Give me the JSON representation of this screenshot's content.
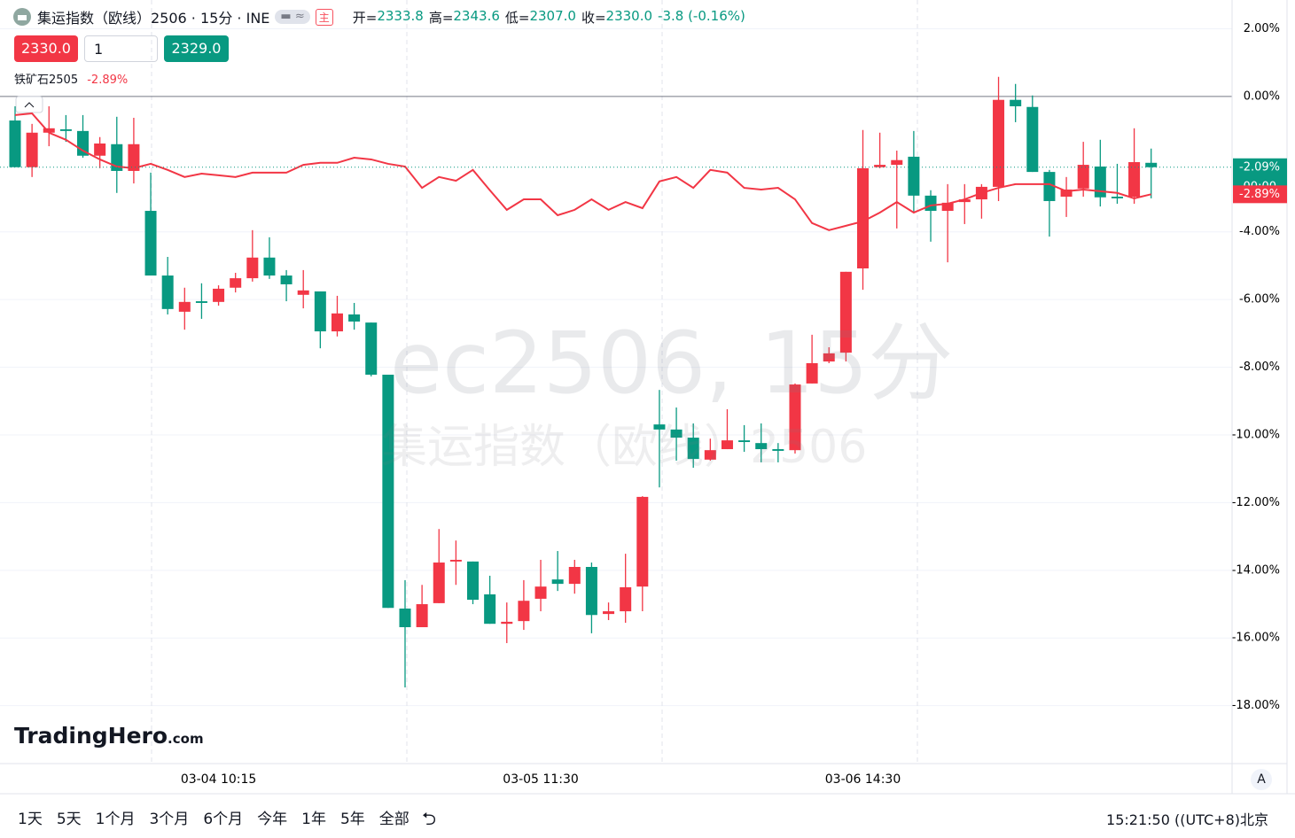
{
  "header": {
    "symbol": "集运指数（欧线）2506 · 15分 · INE",
    "badge": "主",
    "ohlc": [
      {
        "label": "开=",
        "value": "2333.8"
      },
      {
        "label": "高=",
        "value": "2343.6"
      },
      {
        "label": "低=",
        "value": "2307.0"
      },
      {
        "label": "收=",
        "value": "2330.0"
      }
    ],
    "change": "-3.8 (-0.16%)",
    "sell": "2330.0",
    "qty": "1",
    "buy": "2329.0"
  },
  "watermark": {
    "line1": "ec2506, 15分",
    "line2": "集运指数（欧线）2506"
  },
  "logo": {
    "name": "TradingHero",
    "suffix": ".com"
  },
  "footer": {
    "periods": [
      "1天",
      "5天",
      "1个月",
      "3个月",
      "6个月",
      "今年",
      "1年",
      "5年",
      "全部"
    ],
    "clock": "15:21:50 ((UTC+8)北京",
    "auto": "A"
  },
  "chart_data": {
    "type": "candlestick",
    "categories": [
      null,
      null,
      null,
      null,
      null,
      null,
      null,
      null,
      null,
      null,
      null,
      null,
      "03-04 10:15",
      null,
      null,
      null,
      null,
      null,
      null,
      null,
      null,
      null,
      null,
      null,
      null,
      null,
      null,
      null,
      null,
      null,
      null,
      "03-05 11:30",
      null,
      null,
      null,
      null,
      null,
      null,
      null,
      null,
      null,
      null,
      null,
      null,
      null,
      null,
      null,
      null,
      null,
      null,
      "03-06 14:30",
      null,
      null,
      null,
      null,
      null,
      null,
      null,
      null,
      null,
      null,
      null,
      null,
      null,
      null,
      null,
      null,
      null
    ],
    "open": [
      -0.71,
      -2.09,
      -1.07,
      -0.97,
      -1.02,
      -1.75,
      -1.41,
      -2.2,
      -3.38,
      -5.29,
      -6.36,
      -6.05,
      -6.07,
      -5.65,
      -5.37,
      -4.76,
      -5.29,
      -5.86,
      -5.76,
      -6.94,
      -6.44,
      -6.68,
      -8.22,
      -15.13,
      -15.68,
      -14.97,
      -13.74,
      -13.74,
      -14.71,
      -15.58,
      -15.5,
      -14.84,
      -14.27,
      -14.4,
      -13.9,
      -15.29,
      -15.21,
      -14.48,
      -9.69,
      -9.84,
      -10.08,
      -10.73,
      -10.42,
      -10.16,
      -10.24,
      -10.42,
      -10.45,
      -8.48,
      -7.83,
      -7.57,
      -5.08,
      -2.09,
      -2.02,
      -1.78,
      -2.93,
      -3.38,
      -3.12,
      -3.04,
      -2.67,
      -0.1,
      -0.31,
      -2.23,
      -2.96,
      -2.72,
      -2.07,
      -2.96,
      -2.96,
      -1.96
    ],
    "high": [
      -0.29,
      -0.81,
      -0.29,
      -0.55,
      -0.55,
      -1.2,
      -0.6,
      -0.63,
      -2.25,
      -4.74,
      -5.65,
      -5.52,
      -5.58,
      -5.21,
      -3.95,
      -4.16,
      -5.13,
      -5.13,
      -5.76,
      -5.89,
      -6.1,
      -6.68,
      -8.22,
      -14.29,
      -14.43,
      -12.78,
      -13.12,
      -13.74,
      -14.16,
      -14.95,
      -14.29,
      -13.69,
      -13.43,
      -13.69,
      -13.77,
      -14.95,
      -13.51,
      -11.81,
      -8.67,
      -9.19,
      -9.66,
      -10.11,
      -9.24,
      -9.71,
      -9.66,
      -10.24,
      -8.48,
      -7.04,
      -7.41,
      -5.18,
      -0.99,
      -1.07,
      -1.6,
      -1.02,
      -2.77,
      -2.59,
      -2.59,
      -2.59,
      0.58,
      0.37,
      0.03,
      -2.17,
      -2.38,
      -1.34,
      -1.28,
      -1.99,
      -0.94,
      -1.54
    ],
    "low": [
      -2.09,
      -2.38,
      -1.47,
      -1.34,
      -1.81,
      -2.12,
      -2.85,
      -2.57,
      -5.29,
      -6.44,
      -6.89,
      -6.57,
      -6.18,
      -5.79,
      -5.47,
      -5.39,
      -6.05,
      -6.26,
      -7.44,
      -7.09,
      -6.89,
      -8.27,
      -15.11,
      -17.46,
      -15.68,
      -14.97,
      -14.43,
      -15.0,
      -15.58,
      -16.15,
      -15.76,
      -15.21,
      -14.61,
      -14.69,
      -15.86,
      -15.47,
      -15.55,
      -15.21,
      -11.55,
      -10.76,
      -10.97,
      -10.76,
      -10.42,
      -10.5,
      -10.81,
      -10.81,
      -10.55,
      -8.48,
      -7.88,
      -7.83,
      -5.71,
      -2.12,
      -3.9,
      -3.43,
      -4.29,
      -4.9,
      -3.77,
      -3.61,
      -3.09,
      -0.76,
      -2.23,
      -4.14,
      -3.56,
      -2.96,
      -3.25,
      -3.17,
      -3.17,
      -3.01
    ],
    "close": [
      -2.09,
      -1.07,
      -0.94,
      -1.02,
      -1.75,
      -1.39,
      -2.2,
      -1.41,
      -5.29,
      -6.28,
      -6.07,
      -6.1,
      -5.68,
      -5.37,
      -4.76,
      -5.29,
      -5.55,
      -5.73,
      -6.94,
      -6.41,
      -6.65,
      -8.22,
      -15.11,
      -15.68,
      -15.0,
      -13.77,
      -13.69,
      -14.87,
      -15.58,
      -15.52,
      -14.9,
      -14.48,
      -14.4,
      -13.9,
      -15.32,
      -15.21,
      -14.5,
      -11.83,
      -9.84,
      -10.08,
      -10.71,
      -10.45,
      -10.16,
      -10.21,
      -10.42,
      -10.47,
      -8.51,
      -7.88,
      -7.59,
      -5.18,
      -2.12,
      -2.02,
      -1.88,
      -2.93,
      -3.38,
      -3.14,
      -3.04,
      -2.67,
      -0.1,
      -0.29,
      -2.23,
      -3.09,
      -2.75,
      -2.02,
      -2.98,
      -3.01,
      -1.94,
      -2.09
    ],
    "up_color": "#f23645",
    "down_color": "#089981",
    "last_label": {
      "value": -2.09,
      "label": "-2.09%"
    },
    "countdown": "00:00",
    "compare": {
      "name": "铁矿石2505",
      "color": "#f23645",
      "last_label": {
        "value": -2.89,
        "label": "-2.89%"
      },
      "values": [
        -0.55,
        -0.5,
        -1.07,
        -1.28,
        -1.6,
        -1.86,
        -2.07,
        -2.12,
        -1.99,
        -2.17,
        -2.38,
        -2.28,
        -2.33,
        -2.38,
        -2.25,
        -2.25,
        -2.25,
        -2.02,
        -1.96,
        -1.96,
        -1.81,
        -1.86,
        -1.99,
        -2.07,
        -2.7,
        -2.38,
        -2.49,
        -2.17,
        -2.77,
        -3.35,
        -3.04,
        -3.04,
        -3.51,
        -3.35,
        -3.04,
        -3.35,
        -3.12,
        -3.3,
        -2.51,
        -2.38,
        -2.7,
        -2.17,
        -2.25,
        -2.7,
        -2.75,
        -2.7,
        -3.04,
        -3.74,
        -3.95,
        -3.82,
        -3.69,
        -3.43,
        -3.12,
        -3.43,
        -3.22,
        -3.17,
        -3.04,
        -2.85,
        -2.7,
        -2.59,
        -2.59,
        -2.59,
        -2.8,
        -2.75,
        -2.8,
        -2.85,
        -3.01,
        -2.89
      ]
    },
    "ylim": [
      -19.71,
      2.85
    ],
    "yticks": [
      {
        "value": 2,
        "label": "2.00%"
      },
      {
        "value": 0,
        "label": "0.00%"
      },
      {
        "value": -4,
        "label": "-4.00%"
      },
      {
        "value": -6,
        "label": "-6.00%"
      },
      {
        "value": -8,
        "label": "-8.00%"
      },
      {
        "value": -10,
        "label": "-10.00%"
      },
      {
        "value": -12,
        "label": "-12.00%"
      },
      {
        "value": -14,
        "label": "-14.00%"
      },
      {
        "value": -16,
        "label": "-16.00%"
      },
      {
        "value": -18,
        "label": "-18.00%"
      }
    ],
    "grid": true
  }
}
